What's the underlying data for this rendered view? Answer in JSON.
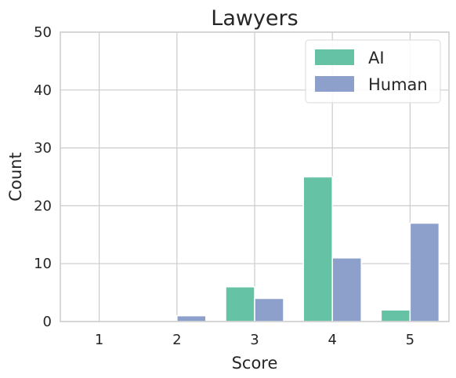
{
  "chart_data": {
    "type": "bar",
    "title": "Lawyers",
    "xlabel": "Score",
    "ylabel": "Count",
    "categories": [
      "1",
      "2",
      "3",
      "4",
      "5"
    ],
    "yticks": [
      "0",
      "10",
      "20",
      "30",
      "40",
      "50"
    ],
    "ylim": [
      0,
      50
    ],
    "grid": true,
    "legend_position": "top-right",
    "series": [
      {
        "name": "AI",
        "values": [
          0,
          0,
          6,
          25,
          2
        ],
        "color": "#66c2a5"
      },
      {
        "name": "Human",
        "values": [
          0,
          1,
          4,
          11,
          17
        ],
        "color": "#8da0cb"
      }
    ]
  }
}
